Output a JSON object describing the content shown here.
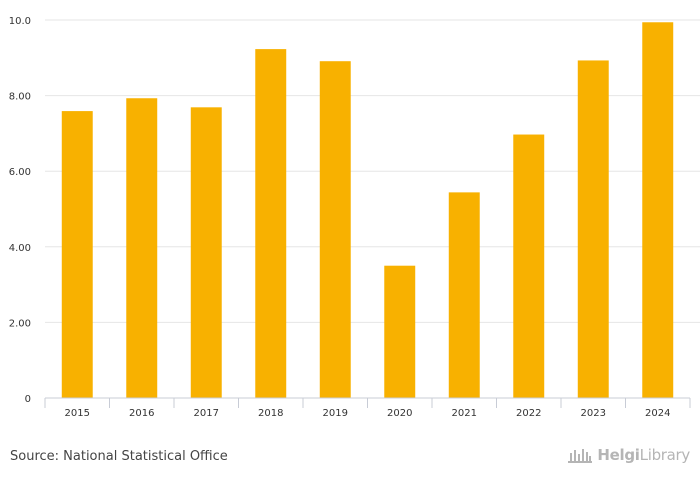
{
  "chart_data": {
    "type": "bar",
    "categories": [
      "2015",
      "2016",
      "2017",
      "2018",
      "2019",
      "2020",
      "2021",
      "2022",
      "2023",
      "2024"
    ],
    "values": [
      7.59,
      7.93,
      7.69,
      9.23,
      8.91,
      3.5,
      5.44,
      6.97,
      8.93,
      9.94
    ],
    "ylim": [
      0,
      10
    ],
    "yticks": [
      0,
      2,
      4,
      6,
      8,
      10
    ],
    "ytick_labels": [
      "0",
      "2.00",
      "4.00",
      "6.00",
      "8.00",
      "10.0"
    ],
    "bar_color": "#f8b100",
    "grid": true,
    "title": "",
    "xlabel": "",
    "ylabel": ""
  },
  "footer": {
    "source": "Source: National Statistical Office",
    "brand_part1": "Helgi",
    "brand_part2": "Library"
  }
}
